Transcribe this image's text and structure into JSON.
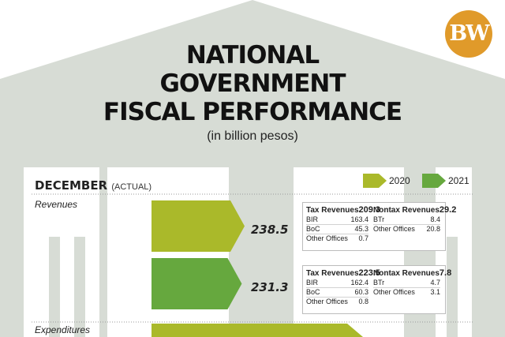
{
  "title_lines": [
    "NATIONAL",
    "GOVERNMENT",
    "FISCAL PERFORMANCE"
  ],
  "subtitle": "(in billion pesos)",
  "logo_text": "BW",
  "period": {
    "label": "DECEMBER",
    "note": "(ACTUAL)"
  },
  "colors": {
    "y2020": "#aab92a",
    "y2021": "#66a83e",
    "pillar": "#d7dcd5",
    "logo": "#e09a2a"
  },
  "sections": {
    "revenues": "Revenues",
    "expenditures": "Expenditures"
  },
  "chart_data": {
    "type": "bar",
    "orientation": "horizontal",
    "title": "NATIONAL GOVERNMENT FISCAL PERFORMANCE",
    "subtitle": "(in billion pesos)",
    "legend": [
      "2020",
      "2021"
    ],
    "legend_position": "top-right",
    "categories": [
      "Revenues",
      "Expenditures"
    ],
    "series": [
      {
        "name": "2020",
        "values": [
          238.5,
          null
        ]
      },
      {
        "name": "2021",
        "values": [
          231.3,
          null
        ]
      }
    ],
    "value_labels": [
      "238.5",
      "231.3"
    ],
    "breakdown": [
      {
        "year": "2020",
        "tax": {
          "label": "Tax Revenues",
          "value": "209.3",
          "items": [
            {
              "label": "BIR",
              "value": "163.4"
            },
            {
              "label": "BoC",
              "value": "45.3"
            },
            {
              "label": "Other Offices",
              "value": "0.7"
            }
          ]
        },
        "nontax": {
          "label": "Nontax Revenues",
          "value": "29.2",
          "items": [
            {
              "label": "BTr",
              "value": "8.4"
            },
            {
              "label": "Other Offices",
              "value": "20.8"
            }
          ]
        }
      },
      {
        "year": "2021",
        "tax": {
          "label": "Tax Revenues",
          "value": "223.5",
          "items": [
            {
              "label": "BIR",
              "value": "162.4"
            },
            {
              "label": "BoC",
              "value": "60.3"
            },
            {
              "label": "Other Offices",
              "value": "0.8"
            }
          ]
        },
        "nontax": {
          "label": "Nontax Revenues",
          "value": "7.8",
          "items": [
            {
              "label": "BTr",
              "value": "4.7"
            },
            {
              "label": "Other Offices",
              "value": "3.1"
            }
          ]
        }
      }
    ]
  }
}
